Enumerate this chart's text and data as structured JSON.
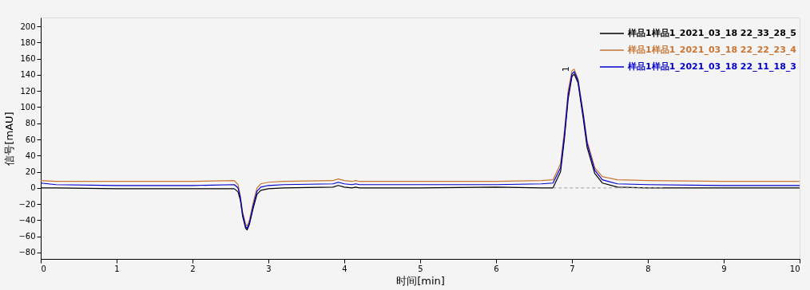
{
  "chart_data": {
    "type": "line",
    "xlabel": "时间[min]",
    "ylabel": "信号[mAU]",
    "xlim": [
      0,
      10
    ],
    "ylim": [
      -88,
      211
    ],
    "xticks": [
      0,
      1,
      2,
      3,
      4,
      5,
      6,
      7,
      8,
      9,
      10
    ],
    "yticks": [
      -80,
      -60,
      -40,
      -20,
      0,
      20,
      40,
      60,
      80,
      100,
      120,
      140,
      160,
      180,
      200
    ],
    "grid": false,
    "legend": "top right",
    "marker": "none",
    "line_style": "solid",
    "annotations": [
      {
        "text": "1",
        "x": 7.03,
        "y": 147
      }
    ],
    "x": [
      0,
      0.2,
      1,
      2,
      2.55,
      2.6,
      2.63,
      2.66,
      2.7,
      2.72,
      2.75,
      2.8,
      2.85,
      2.9,
      3.0,
      3.2,
      3.85,
      3.92,
      4.0,
      4.1,
      4.15,
      4.2,
      5,
      6,
      6.6,
      6.75,
      6.85,
      6.9,
      6.95,
      7.0,
      7.03,
      7.08,
      7.15,
      7.2,
      7.3,
      7.4,
      7.6,
      8,
      9,
      10
    ],
    "series": [
      {
        "name": "样品1样品1_2021_03_18 22_33_28_5",
        "color": "#000000",
        "values": [
          0,
          0,
          -1,
          -1,
          -1,
          -5,
          -15,
          -35,
          -50,
          -52,
          -45,
          -25,
          -8,
          -3,
          -1,
          0,
          1,
          3,
          1,
          0,
          1,
          0,
          0,
          1,
          0,
          0,
          20,
          60,
          110,
          138,
          141,
          130,
          85,
          50,
          18,
          6,
          1,
          0,
          0,
          0
        ]
      },
      {
        "name": "样品1样品1_2021_03_18 22_22_23_4",
        "color": "#c87533",
        "values": [
          9,
          8,
          8,
          8,
          9,
          4,
          -10,
          -30,
          -45,
          -47,
          -40,
          -18,
          0,
          5,
          7,
          8,
          9,
          11,
          9,
          8,
          9,
          8,
          8,
          8,
          9,
          10,
          30,
          70,
          120,
          145,
          147,
          135,
          92,
          58,
          25,
          14,
          10,
          9,
          8,
          8
        ]
      },
      {
        "name": "样品1样品1_2021_03_18 22_11_18_3",
        "color": "#0000cc",
        "values": [
          6,
          4,
          3,
          3,
          4,
          0,
          -12,
          -32,
          -48,
          -50,
          -43,
          -22,
          -4,
          1,
          3,
          4,
          5,
          7,
          5,
          4,
          5,
          4,
          4,
          4,
          5,
          6,
          25,
          65,
          115,
          141,
          144,
          133,
          90,
          55,
          22,
          10,
          5,
          4,
          3,
          3
        ]
      },
      {
        "type": "line",
        "color": "#a0a0a0",
        "line_style": "dashed",
        "x": [
          6.75,
          8.2
        ],
        "values": [
          0,
          0
        ]
      }
    ]
  }
}
